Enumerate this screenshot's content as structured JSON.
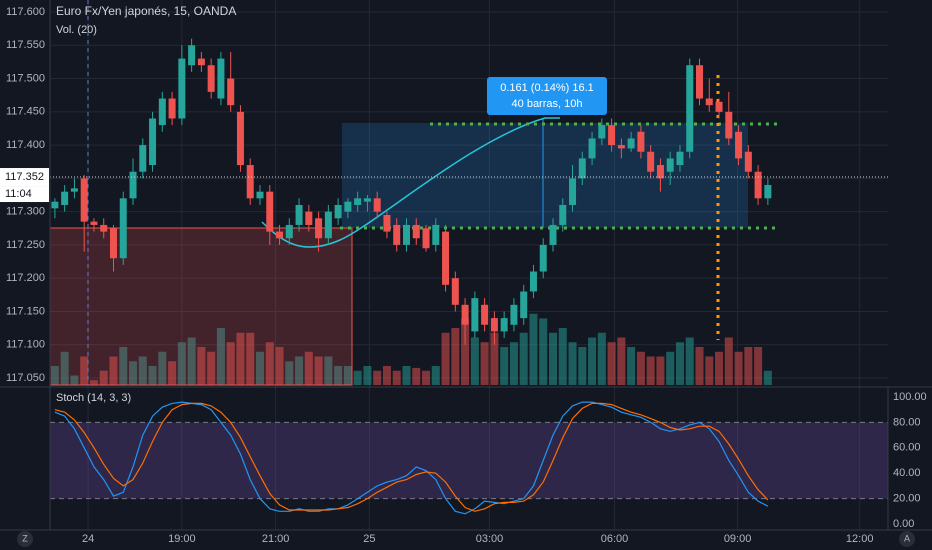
{
  "controls": {
    "left": "Z",
    "right": "A"
  },
  "chart_data": [
    {
      "type": "candlestick",
      "title": "Euro Fx/Yen japonés, 15, OANDA",
      "up_color": "#26a69a",
      "down_color": "#ef5350",
      "open": [
        117.305,
        117.31,
        117.33,
        117.35,
        117.285,
        117.28,
        117.275,
        117.23,
        117.32,
        117.36,
        117.37,
        117.43,
        117.47,
        117.44,
        117.52,
        117.53,
        117.52,
        117.47,
        117.5,
        117.45,
        117.37,
        117.32,
        117.33,
        117.27,
        117.26,
        117.28,
        117.3,
        117.29,
        117.26,
        117.29,
        117.3,
        117.31,
        117.315,
        117.32,
        117.295,
        117.28,
        117.25,
        117.28,
        117.275,
        117.25,
        117.27,
        117.2,
        117.16,
        117.12,
        117.16,
        117.14,
        117.12,
        117.13,
        117.14,
        117.18,
        117.21,
        117.25,
        117.28,
        117.31,
        117.35,
        117.38,
        117.41,
        117.43,
        117.4,
        117.395,
        117.42,
        117.39,
        117.37,
        117.36,
        117.37,
        117.39,
        117.52,
        117.47,
        117.465,
        117.45,
        117.42,
        117.39,
        117.36,
        117.32
      ],
      "high": [
        117.32,
        117.34,
        117.35,
        117.355,
        117.29,
        117.29,
        117.28,
        117.33,
        117.38,
        117.41,
        117.45,
        117.48,
        117.48,
        117.55,
        117.56,
        117.54,
        117.53,
        117.54,
        117.54,
        117.46,
        117.38,
        117.34,
        117.34,
        117.28,
        117.29,
        117.32,
        117.31,
        117.3,
        117.31,
        117.32,
        117.32,
        117.33,
        117.325,
        117.33,
        117.3,
        117.29,
        117.29,
        117.29,
        117.28,
        117.29,
        117.28,
        117.21,
        117.17,
        117.18,
        117.17,
        117.15,
        117.15,
        117.17,
        117.19,
        117.22,
        117.26,
        117.29,
        117.32,
        117.37,
        117.39,
        117.42,
        117.44,
        117.44,
        117.41,
        117.42,
        117.43,
        117.4,
        117.38,
        117.39,
        117.4,
        117.53,
        117.53,
        117.5,
        117.47,
        117.48,
        117.43,
        117.4,
        117.37,
        117.35
      ],
      "low": [
        117.29,
        117.3,
        117.32,
        117.24,
        117.27,
        117.26,
        117.21,
        117.22,
        117.31,
        117.35,
        117.36,
        117.42,
        117.43,
        117.43,
        117.51,
        117.51,
        117.47,
        117.46,
        117.45,
        117.36,
        117.31,
        117.31,
        117.25,
        117.25,
        117.25,
        117.27,
        117.27,
        117.24,
        117.25,
        117.28,
        117.29,
        117.3,
        117.3,
        117.29,
        117.26,
        117.24,
        117.24,
        117.25,
        117.24,
        117.24,
        117.18,
        117.15,
        117.1,
        117.11,
        117.12,
        117.1,
        117.11,
        117.12,
        117.13,
        117.17,
        117.2,
        117.24,
        117.27,
        117.3,
        117.34,
        117.37,
        117.4,
        117.39,
        117.38,
        117.39,
        117.38,
        117.35,
        117.33,
        117.34,
        117.36,
        117.38,
        117.46,
        117.45,
        117.44,
        117.4,
        117.37,
        117.35,
        117.31,
        117.31
      ],
      "close": [
        117.315,
        117.33,
        117.335,
        117.285,
        117.28,
        117.27,
        117.23,
        117.32,
        117.36,
        117.4,
        117.44,
        117.47,
        117.44,
        117.53,
        117.55,
        117.52,
        117.48,
        117.53,
        117.46,
        117.37,
        117.32,
        117.33,
        117.27,
        117.26,
        117.28,
        117.31,
        117.28,
        117.26,
        117.3,
        117.31,
        117.315,
        117.32,
        117.32,
        117.3,
        117.27,
        117.25,
        117.28,
        117.26,
        117.245,
        117.28,
        117.19,
        117.16,
        117.13,
        117.17,
        117.13,
        117.12,
        117.14,
        117.16,
        117.18,
        117.21,
        117.25,
        117.28,
        117.31,
        117.35,
        117.38,
        117.41,
        117.43,
        117.4,
        117.395,
        117.41,
        117.39,
        117.36,
        117.35,
        117.38,
        117.39,
        117.52,
        117.47,
        117.46,
        117.45,
        117.41,
        117.38,
        117.36,
        117.32,
        117.34
      ],
      "ylim": [
        117.05,
        117.6
      ],
      "yticks": [
        {
          "value": 117.05,
          "label": "117.050"
        },
        {
          "value": 117.1,
          "label": "117.100"
        },
        {
          "value": 117.15,
          "label": "117.150"
        },
        {
          "value": 117.2,
          "label": "117.200"
        },
        {
          "value": 117.25,
          "label": "117.250"
        },
        {
          "value": 117.3,
          "label": "117.300"
        },
        {
          "value": 117.35,
          "label": "117.350"
        },
        {
          "value": 117.4,
          "label": "117.400"
        },
        {
          "value": 117.45,
          "label": "117.450"
        },
        {
          "value": 117.5,
          "label": "117.500"
        },
        {
          "value": 117.55,
          "label": "117.550"
        },
        {
          "value": 117.6,
          "label": "117.600"
        }
      ],
      "xlim": [
        -0.5,
        85.3
      ],
      "xticks": [
        {
          "value": 3.4,
          "label": "24"
        },
        {
          "value": 13,
          "label": "19:00"
        },
        {
          "value": 22.6,
          "label": "21:00"
        },
        {
          "value": 32.2,
          "label": "25"
        },
        {
          "value": 44.5,
          "label": "03:00"
        },
        {
          "value": 57.3,
          "label": "06:00"
        },
        {
          "value": 69.9,
          "label": "09:00"
        },
        {
          "value": 82.4,
          "label": "12:00"
        }
      ],
      "last_price": 117.352,
      "countdown": "11:04",
      "annotations": [
        "0.161 (0.14%) 16.1",
        "40 barras, 10h"
      ],
      "grid": true
    },
    {
      "type": "volume",
      "title": "Vol. (20)",
      "opacity": 0.5,
      "values": [
        20,
        35,
        10,
        30,
        5,
        15,
        30,
        40,
        25,
        30,
        20,
        35,
        25,
        45,
        50,
        40,
        35,
        60,
        45,
        55,
        55,
        35,
        45,
        40,
        25,
        30,
        35,
        30,
        30,
        20,
        20,
        15,
        20,
        15,
        20,
        15,
        20,
        18,
        15,
        20,
        55,
        60,
        70,
        50,
        45,
        55,
        40,
        45,
        55,
        75,
        70,
        55,
        60,
        45,
        40,
        50,
        55,
        45,
        50,
        40,
        35,
        30,
        30,
        35,
        45,
        50,
        40,
        30,
        35,
        50,
        35,
        40,
        40,
        15
      ],
      "ylim": [
        0,
        100
      ]
    },
    {
      "type": "line",
      "title": "Stoch (14, 3, 3)",
      "series": [
        {
          "color": "#2196f3",
          "values": [
            88,
            85,
            75,
            60,
            45,
            35,
            22,
            25,
            45,
            70,
            85,
            92,
            95,
            96,
            95,
            94,
            90,
            80,
            70,
            55,
            35,
            20,
            12,
            10,
            10,
            12,
            10,
            10,
            12,
            12,
            15,
            20,
            25,
            30,
            33,
            35,
            38,
            45,
            42,
            35,
            20,
            10,
            8,
            12,
            18,
            17,
            16,
            18,
            20,
            30,
            50,
            70,
            85,
            93,
            96,
            96,
            94,
            92,
            88,
            86,
            84,
            80,
            75,
            73,
            75,
            78,
            80,
            75,
            65,
            50,
            38,
            25,
            18,
            14
          ]
        },
        {
          "color": "#ff6d00",
          "values": [
            90,
            88,
            82,
            72,
            60,
            47,
            36,
            30,
            35,
            48,
            65,
            80,
            90,
            94,
            95,
            95,
            93,
            88,
            80,
            68,
            53,
            38,
            24,
            15,
            11,
            11,
            11,
            11,
            11,
            12,
            13,
            16,
            20,
            25,
            29,
            33,
            35,
            39,
            41,
            40,
            33,
            22,
            13,
            10,
            12,
            16,
            17,
            17,
            18,
            23,
            33,
            50,
            68,
            83,
            91,
            95,
            95,
            94,
            91,
            88,
            86,
            83,
            80,
            76,
            74,
            75,
            77,
            77,
            73,
            63,
            51,
            38,
            27,
            19
          ]
        }
      ],
      "ylim": [
        0,
        100
      ],
      "yticks": [
        {
          "value": 0,
          "label": "0.00"
        },
        {
          "value": 20,
          "label": "20.00"
        },
        {
          "value": 40,
          "label": "40.00"
        },
        {
          "value": 60,
          "label": "60.00"
        },
        {
          "value": 80,
          "label": "80.00"
        },
        {
          "value": 100,
          "label": "100.00"
        }
      ],
      "band": [
        20,
        80
      ],
      "band_color": "#7e57c2"
    }
  ]
}
